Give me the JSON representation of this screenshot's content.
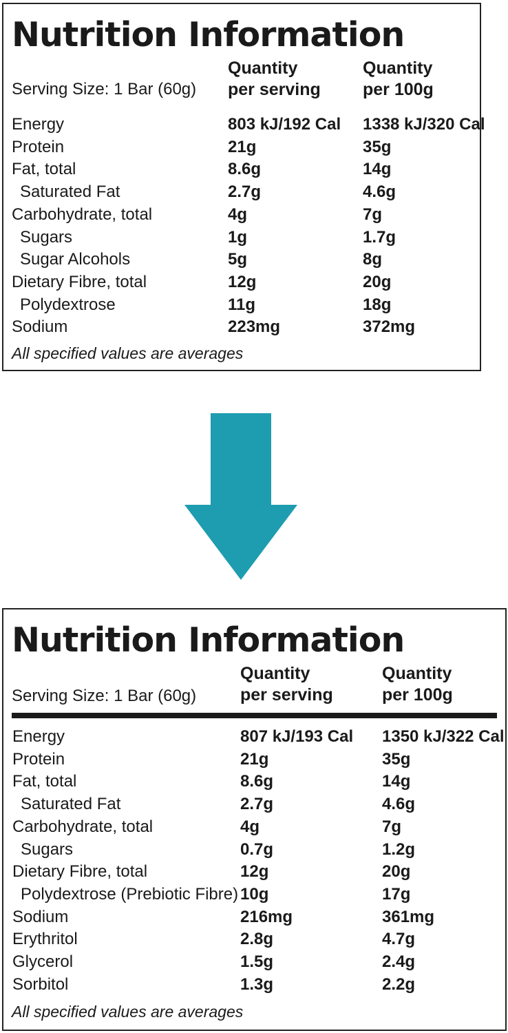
{
  "colors": {
    "arrow": "#1e9cb0",
    "text": "#1a1a1a",
    "border": "#222222"
  },
  "old_panel": {
    "title": "Nutrition Information",
    "serving_size": "Serving Size: 1 Bar (60g)",
    "col1_header_line1": "Quantity",
    "col1_header_line2": "per serving",
    "col2_header_line1": "Quantity",
    "col2_header_line2": "per 100g",
    "rows": [
      {
        "label": "Energy",
        "per_serving": "803 kJ/192 Cal",
        "per_100g": "1338 kJ/320 Cal",
        "indent": false
      },
      {
        "label": "Protein",
        "per_serving": "21g",
        "per_100g": "35g",
        "indent": false
      },
      {
        "label": "Fat, total",
        "per_serving": "8.6g",
        "per_100g": "14g",
        "indent": false
      },
      {
        "label": "Saturated Fat",
        "per_serving": "2.7g",
        "per_100g": "4.6g",
        "indent": true
      },
      {
        "label": "Carbohydrate, total",
        "per_serving": "4g",
        "per_100g": "7g",
        "indent": false
      },
      {
        "label": "Sugars",
        "per_serving": "1g",
        "per_100g": "1.7g",
        "indent": true
      },
      {
        "label": "Sugar Alcohols",
        "per_serving": "5g",
        "per_100g": "8g",
        "indent": true
      },
      {
        "label": "Dietary Fibre, total",
        "per_serving": "12g",
        "per_100g": "20g",
        "indent": false
      },
      {
        "label": "Polydextrose",
        "per_serving": "11g",
        "per_100g": "18g",
        "indent": true
      },
      {
        "label": "Sodium",
        "per_serving": "223mg",
        "per_100g": "372mg",
        "indent": false
      }
    ],
    "footnote": "All specified values are averages"
  },
  "arrow_icon": "arrow-down-icon",
  "new_panel": {
    "title": "Nutrition Information",
    "serving_size": "Serving Size: 1 Bar (60g)",
    "col1_header_line1": "Quantity",
    "col1_header_line2": "per serving",
    "col2_header_line1": "Quantity",
    "col2_header_line2": "per 100g",
    "rows": [
      {
        "label": "Energy",
        "per_serving": "807 kJ/193 Cal",
        "per_100g": "1350 kJ/322 Cal",
        "indent": false
      },
      {
        "label": "Protein",
        "per_serving": "21g",
        "per_100g": "35g",
        "indent": false
      },
      {
        "label": "Fat, total",
        "per_serving": "8.6g",
        "per_100g": "14g",
        "indent": false
      },
      {
        "label": "Saturated Fat",
        "per_serving": "2.7g",
        "per_100g": "4.6g",
        "indent": true
      },
      {
        "label": "Carbohydrate, total",
        "per_serving": "4g",
        "per_100g": "7g",
        "indent": false
      },
      {
        "label": "Sugars",
        "per_serving": "0.7g",
        "per_100g": "1.2g",
        "indent": true
      },
      {
        "label": "Dietary Fibre, total",
        "per_serving": "12g",
        "per_100g": "20g",
        "indent": false
      },
      {
        "label": "Polydextrose (Prebiotic Fibre)",
        "per_serving": "10g",
        "per_100g": "17g",
        "indent": true
      },
      {
        "label": "Sodium",
        "per_serving": "216mg",
        "per_100g": "361mg",
        "indent": false
      },
      {
        "label": "Erythritol",
        "per_serving": "2.8g",
        "per_100g": "4.7g",
        "indent": false
      },
      {
        "label": "Glycerol",
        "per_serving": "1.5g",
        "per_100g": "2.4g",
        "indent": false
      },
      {
        "label": "Sorbitol",
        "per_serving": "1.3g",
        "per_100g": "2.2g",
        "indent": false
      }
    ],
    "footnote": "All specified values are averages"
  }
}
